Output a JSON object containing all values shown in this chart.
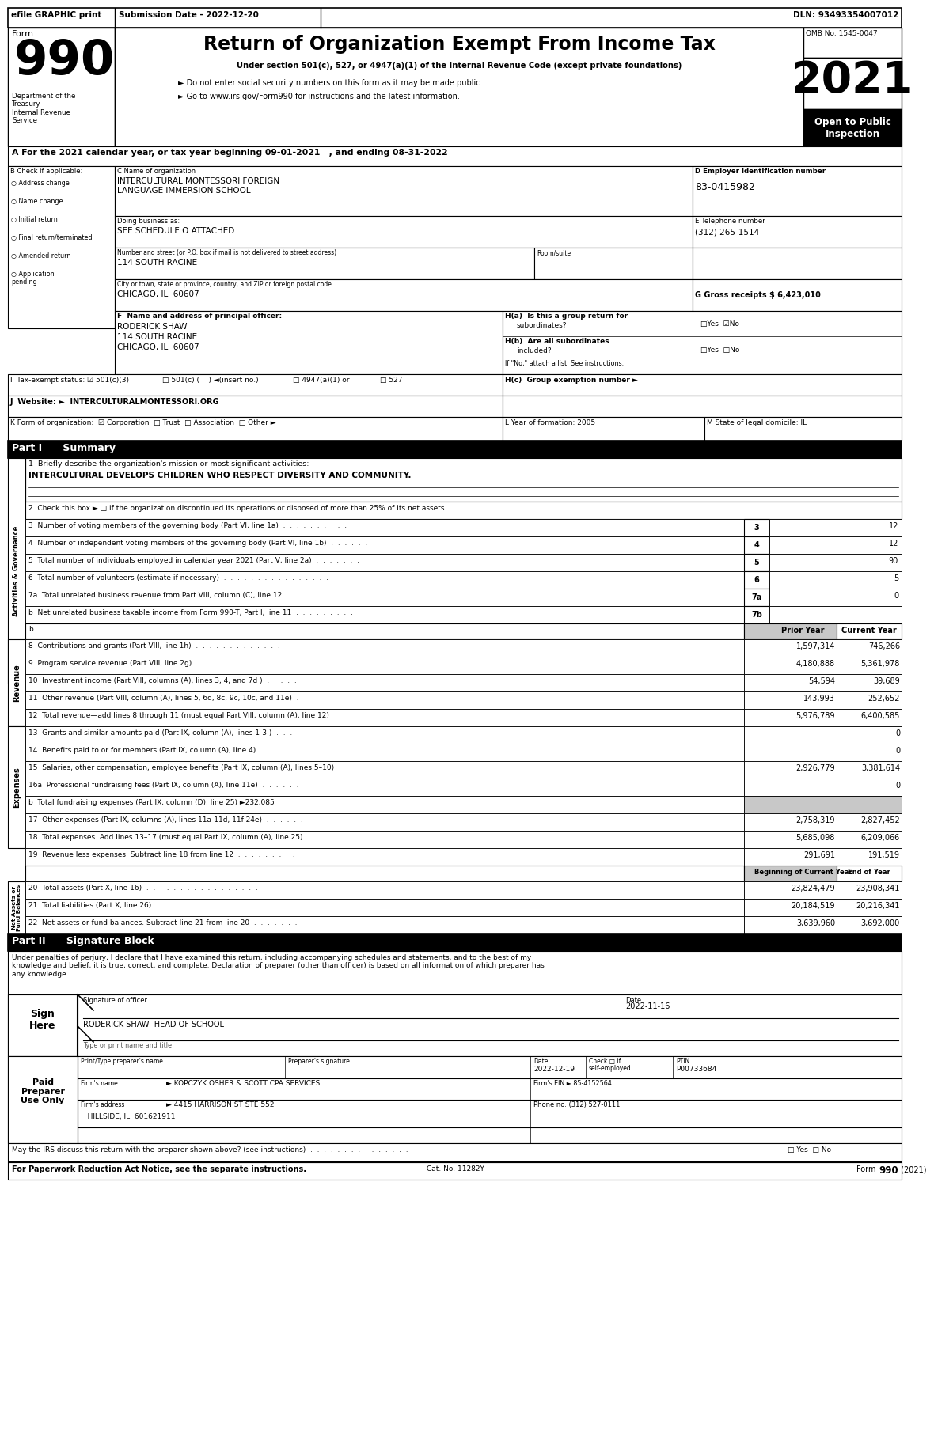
{
  "title_main": "Return of Organization Exempt From Income Tax",
  "subtitle1": "Under section 501(c), 527, or 4947(a)(1) of the Internal Revenue Code (except private foundations)",
  "subtitle2": "► Do not enter social security numbers on this form as it may be made public.",
  "subtitle3": "► Go to www.irs.gov/Form990 for instructions and the latest information.",
  "form_number": "990",
  "year": "2021",
  "omb": "OMB No. 1545-0047",
  "open_public": "Open to Public\nInspection",
  "efile_text": "efile GRAPHIC print",
  "submission_date": "Submission Date - 2022-12-20",
  "dln": "DLN: 93493354007012",
  "dept_treasury": "Department of the\nTreasury\nInternal Revenue\nService",
  "period_text": "A For the 2021 calendar year, or tax year beginning 09-01-2021   , and ending 08-31-2022",
  "org_name": "INTERCULTURAL MONTESSORI FOREIGN\nLANGUAGE IMMERSION SCHOOL",
  "dba": "SEE SCHEDULE O ATTACHED",
  "address_label": "Number and street (or P.O. box if mail is not delivered to street address)",
  "address": "114 SOUTH RACINE",
  "room_label": "Room/suite",
  "city_label": "City or town, state or province, country, and ZIP or foreign postal code",
  "city": "CHICAGO, IL  60607",
  "ein": "83-0415982",
  "phone": "(312) 265-1514",
  "gross": "6,423,010",
  "principal_label": "F  Name and address of principal officer:",
  "principal_name": "RODERICK SHAW",
  "principal_addr1": "114 SOUTH RACINE",
  "principal_addr2": "CHICAGO, IL  60607",
  "website": "INTERCULTURALMONTESSORI.ORG",
  "year_form": "L Year of formation: 2005",
  "state_dom": "M State of legal domicile: IL",
  "part1_title": "Part I      Summary",
  "line1_label": "1  Briefly describe the organization's mission or most significant activities:",
  "line1_val": "INTERCULTURAL DEVELOPS CHILDREN WHO RESPECT DIVERSITY AND COMMUNITY.",
  "line2_label": "2  Check this box ► □ if the organization discontinued its operations or disposed of more than 25% of its net assets.",
  "line3_label": "3  Number of voting members of the governing body (Part VI, line 1a)  .  .  .  .  .  .  .  .  .  .",
  "line3_num": "3",
  "line3_val": "12",
  "line4_label": "4  Number of independent voting members of the governing body (Part VI, line 1b)  .  .  .  .  .  .",
  "line4_num": "4",
  "line4_val": "12",
  "line5_label": "5  Total number of individuals employed in calendar year 2021 (Part V, line 2a)  .  .  .  .  .  .  .",
  "line5_num": "5",
  "line5_val": "90",
  "line6_label": "6  Total number of volunteers (estimate if necessary)  .  .  .  .  .  .  .  .  .  .  .  .  .  .  .  .",
  "line6_num": "6",
  "line6_val": "5",
  "line7a_label": "7a  Total unrelated business revenue from Part VIII, column (C), line 12  .  .  .  .  .  .  .  .  .",
  "line7a_num": "7a",
  "line7a_val": "0",
  "line7b_label": "b  Net unrelated business taxable income from Form 990-T, Part I, line 11  .  .  .  .  .  .  .  .  .",
  "line7b_num": "7b",
  "line7b_val": "",
  "rev_header_prior": "Prior Year",
  "rev_header_current": "Current Year",
  "line8_label": "8  Contributions and grants (Part VIII, line 1h)  .  .  .  .  .  .  .  .  .  .  .  .  .",
  "line8_prior": "1,597,314",
  "line8_current": "746,266",
  "line9_label": "9  Program service revenue (Part VIII, line 2g)  .  .  .  .  .  .  .  .  .  .  .  .  .",
  "line9_prior": "4,180,888",
  "line9_current": "5,361,978",
  "line10_label": "10  Investment income (Part VIII, columns (A), lines 3, 4, and 7d )  .  .  .  .  .",
  "line10_prior": "54,594",
  "line10_current": "39,689",
  "line11_label": "11  Other revenue (Part VIII, column (A), lines 5, 6d, 8c, 9c, 10c, and 11e)  .",
  "line11_prior": "143,993",
  "line11_current": "252,652",
  "line12_label": "12  Total revenue—add lines 8 through 11 (must equal Part VIII, column (A), line 12)",
  "line12_prior": "5,976,789",
  "line12_current": "6,400,585",
  "line13_label": "13  Grants and similar amounts paid (Part IX, column (A), lines 1-3 )  .  .  .  .",
  "line13_prior": "",
  "line13_current": "0",
  "line14_label": "14  Benefits paid to or for members (Part IX, column (A), line 4)  .  .  .  .  .  .",
  "line14_prior": "",
  "line14_current": "0",
  "line15_label": "15  Salaries, other compensation, employee benefits (Part IX, column (A), lines 5–10)",
  "line15_prior": "2,926,779",
  "line15_current": "3,381,614",
  "line16a_label": "16a  Professional fundraising fees (Part IX, column (A), line 11e)  .  .  .  .  .  .",
  "line16a_prior": "",
  "line16a_current": "0",
  "line16b_label": "b  Total fundraising expenses (Part IX, column (D), line 25) ►232,085",
  "line17_label": "17  Other expenses (Part IX, columns (A), lines 11a-11d, 11f-24e)  .  .  .  .  .  .",
  "line17_prior": "2,758,319",
  "line17_current": "2,827,452",
  "line18_label": "18  Total expenses. Add lines 13–17 (must equal Part IX, column (A), line 25)",
  "line18_prior": "5,685,098",
  "line18_current": "6,209,066",
  "line19_label": "19  Revenue less expenses. Subtract line 18 from line 12  .  .  .  .  .  .  .  .  .",
  "line19_prior": "291,691",
  "line19_current": "191,519",
  "bal_header_begin": "Beginning of Current Year",
  "bal_header_end": "End of Year",
  "line20_label": "20  Total assets (Part X, line 16)  .  .  .  .  .  .  .  .  .  .  .  .  .  .  .  .  .",
  "line20_begin": "23,824,479",
  "line20_end": "23,908,341",
  "line21_label": "21  Total liabilities (Part X, line 26)  .  .  .  .  .  .  .  .  .  .  .  .  .  .  .  .",
  "line21_begin": "20,184,519",
  "line21_end": "20,216,341",
  "line22_label": "22  Net assets or fund balances. Subtract line 21 from line 20  .  .  .  .  .  .  .",
  "line22_begin": "3,639,960",
  "line22_end": "3,692,000",
  "part2_title": "Part II      Signature Block",
  "sig_declaration": "Under penalties of perjury, I declare that I have examined this return, including accompanying schedules and statements, and to the best of my\nknowledge and belief, it is true, correct, and complete. Declaration of preparer (other than officer) is based on all information of which preparer has\nany knowledge.",
  "sig_date": "2022-11-16",
  "sig_name": "RODERICK SHAW  HEAD OF SCHOOL",
  "prep_date": "2022-12-19",
  "prep_ptin": "P00733684",
  "prep_firm_ein": "85-4152564",
  "prep_firm_name": "KOPCZYK OSHER & SCOTT CPA SERVICES",
  "prep_firm_addr": "4415 HARRISON ST STE 552",
  "prep_firm_city": "HILLSIDE, IL  601621911",
  "prep_phone": "(312) 527-0111",
  "discuss_label": "May the IRS discuss this return with the preparer shown above? (see instructions)  .  .  .  .  .  .  .  .  .  .  .  .  .  .  .",
  "paperwork_label": "For Paperwork Reduction Act Notice, see the separate instructions.",
  "cat_no": "Cat. No. 11282Y",
  "form_footer": "Form 990 (2021)",
  "bg_color": "#ffffff",
  "header_bg": "#000000",
  "section_bg": "#c8c8c8",
  "mid_gray": "#e0e0e0"
}
